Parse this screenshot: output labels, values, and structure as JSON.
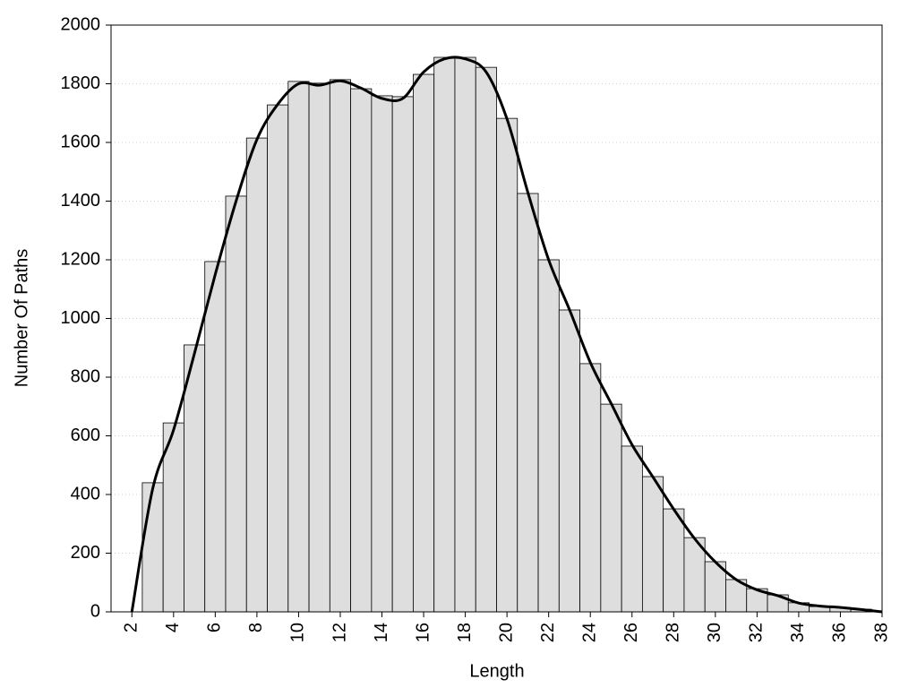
{
  "chart_data": {
    "type": "histogram",
    "x_label": "Length",
    "y_label": "Number Of Paths",
    "bins": [
      2.5,
      3.5,
      4.5,
      5.5,
      6.5,
      7.5,
      8.5,
      9.5,
      10.5,
      11.5,
      12.5,
      13.5,
      14.5,
      15.5,
      16.5,
      17.5,
      18.5,
      19.5,
      20.5,
      21.5,
      22.5,
      23.5,
      24.5,
      25.5,
      26.5,
      27.5,
      28.5,
      29.5,
      30.5,
      31.5,
      32.5,
      33.5,
      34.5,
      35.5,
      36.5,
      37.5
    ],
    "values": [
      440,
      644,
      910,
      1194,
      1417,
      1615,
      1728,
      1808,
      1802,
      1814,
      1783,
      1759,
      1756,
      1832,
      1890,
      1890,
      1856,
      1682,
      1426,
      1200,
      1029,
      846,
      708,
      565,
      461,
      351,
      253,
      171,
      110,
      79,
      58,
      31,
      18,
      15,
      9
    ],
    "color": "#dedede",
    "line": {
      "color": "#000000",
      "x": [
        2,
        3,
        4,
        5,
        6,
        7,
        8,
        9,
        10,
        11,
        12,
        13,
        14,
        15,
        16,
        17,
        18,
        19,
        20,
        21,
        22,
        23,
        24,
        25,
        26,
        27,
        28,
        29,
        30,
        31,
        32,
        33,
        34,
        35,
        36,
        37,
        38
      ],
      "values": [
        0,
        420,
        620,
        880,
        1150,
        1400,
        1610,
        1730,
        1800,
        1795,
        1810,
        1785,
        1750,
        1750,
        1840,
        1885,
        1885,
        1840,
        1680,
        1430,
        1200,
        1030,
        850,
        710,
        570,
        460,
        350,
        250,
        170,
        110,
        75,
        55,
        30,
        20,
        15,
        8,
        0
      ]
    },
    "xlim": [
      1,
      38
    ],
    "xticks": [
      2,
      4,
      6,
      8,
      10,
      12,
      14,
      16,
      18,
      20,
      22,
      24,
      26,
      28,
      30,
      32,
      34,
      36,
      38
    ],
    "ylim": [
      0,
      2000
    ],
    "yticks": [
      0,
      200,
      400,
      600,
      800,
      1000,
      1200,
      1400,
      1600,
      1800,
      2000
    ],
    "grid": true
  }
}
